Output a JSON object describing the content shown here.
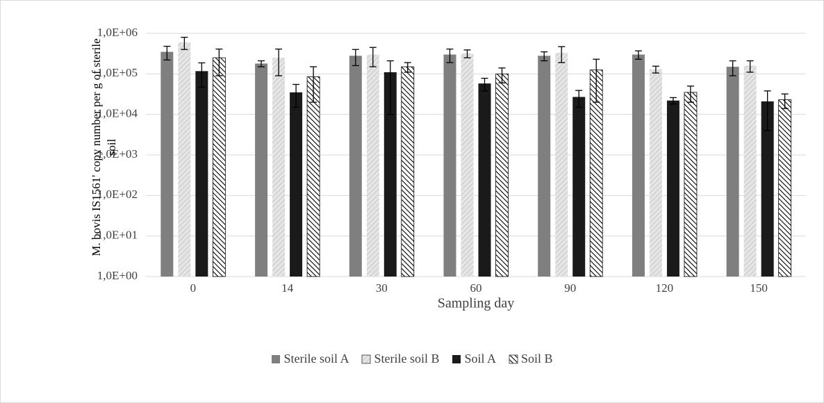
{
  "chart_data": {
    "type": "bar",
    "x_label": "Sampling day",
    "y_label": "M. bovis IS1561' copy number per g of sterile soil",
    "categories": [
      "0",
      "14",
      "30",
      "60",
      "90",
      "120",
      "150"
    ],
    "log_scale": true,
    "grid": true,
    "legend": "bottom",
    "ylim": [
      1,
      1000000
    ],
    "yticks": [
      {
        "value": 1,
        "label": "1,0E+00"
      },
      {
        "value": 10,
        "label": "1,0E+01"
      },
      {
        "value": 100,
        "label": "1,0E+02"
      },
      {
        "value": 1000,
        "label": "1,0E+03"
      },
      {
        "value": 10000,
        "label": "1,0E+04"
      },
      {
        "value": 100000,
        "label": "1,0E+05"
      },
      {
        "value": 1000000,
        "label": "1,0E+06"
      }
    ],
    "series": [
      {
        "name": "Sterile soil A",
        "color": "#7f7f7f",
        "values": [
          350000,
          180000,
          280000,
          300000,
          280000,
          300000,
          150000
        ],
        "errors": [
          130000,
          30000,
          120000,
          110000,
          70000,
          70000,
          60000
        ]
      },
      {
        "name": "Sterile soil B",
        "color": "#d9d9d9",
        "pattern": "hatch-light",
        "values": [
          600000,
          250000,
          300000,
          320000,
          330000,
          130000,
          160000
        ],
        "errors": [
          200000,
          160000,
          150000,
          70000,
          140000,
          25000,
          50000
        ]
      },
      {
        "name": "Soil A",
        "color": "#1a1a1a",
        "values": [
          117000,
          35000,
          110000,
          58000,
          27000,
          22000,
          21000
        ],
        "errors": [
          70000,
          20000,
          100000,
          20000,
          12000,
          4000,
          17000
        ]
      },
      {
        "name": "Soil B",
        "color": "#000000",
        "pattern": "hatch-dark",
        "values": [
          250000,
          85000,
          150000,
          100000,
          125000,
          35000,
          23000
        ],
        "errors": [
          160000,
          65000,
          40000,
          40000,
          105000,
          15000,
          9000
        ]
      }
    ]
  }
}
